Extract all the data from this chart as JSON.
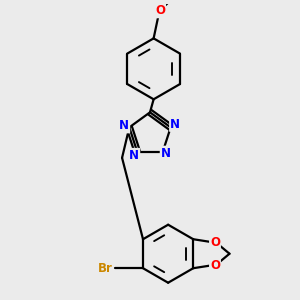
{
  "bg_color": "#ebebeb",
  "bond_color": "#000000",
  "bond_width": 1.6,
  "atom_colors": {
    "N": "#0000ff",
    "O": "#ff0000",
    "Br": "#cc8800",
    "C": "#000000"
  },
  "font_size": 8.5,
  "fig_size": [
    3.0,
    3.0
  ],
  "dpi": 100
}
